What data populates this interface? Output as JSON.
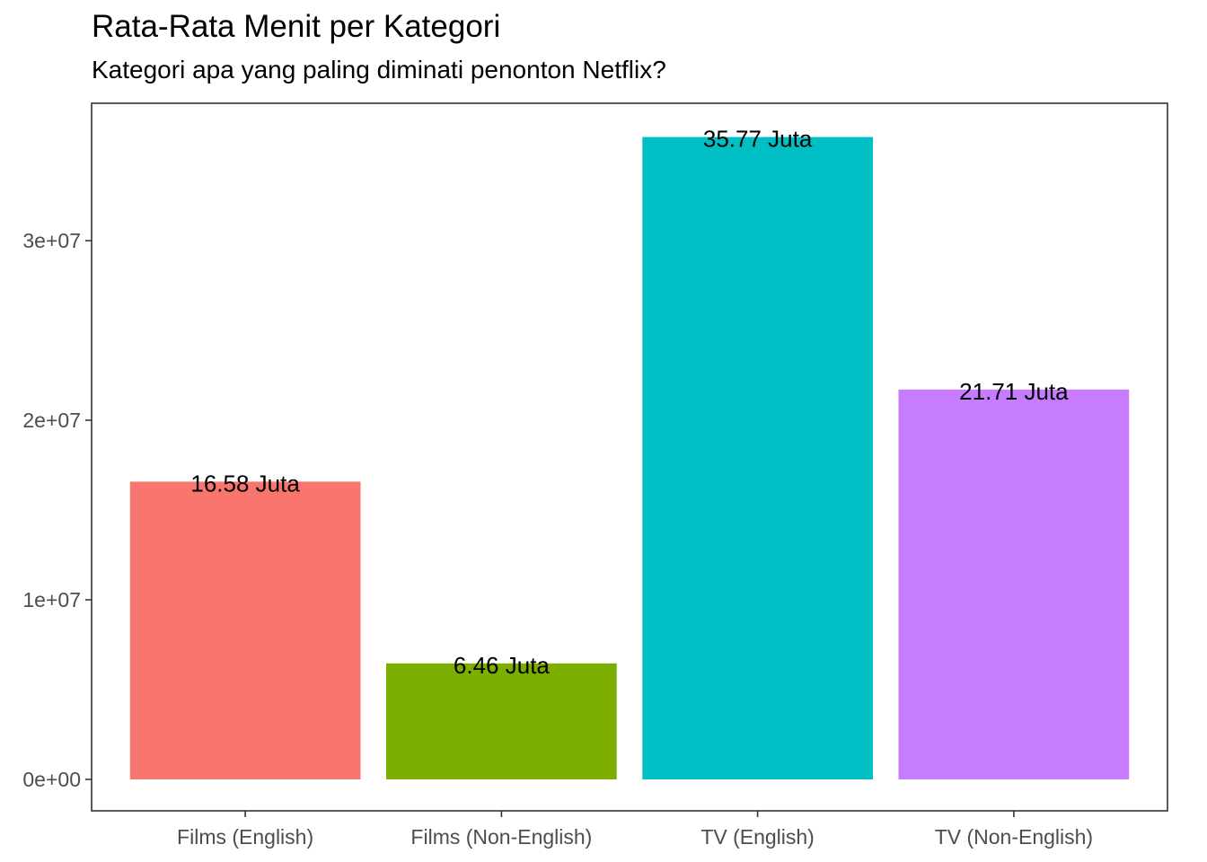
{
  "chart_data": {
    "type": "bar",
    "title": "Rata-Rata Menit per Kategori",
    "subtitle": "Kategori apa yang paling diminati penonton Netflix?",
    "xlabel": "",
    "ylabel": "",
    "categories": [
      "Films (English)",
      "Films (Non-English)",
      "TV (English)",
      "TV (Non-English)"
    ],
    "values": [
      16580000,
      6460000,
      35770000,
      21710000
    ],
    "data_labels": [
      "16.58 Juta",
      "6.46 Juta",
      "35.77 Juta",
      "21.71 Juta"
    ],
    "colors": [
      "#F8766D",
      "#7CAE00",
      "#00BFC4",
      "#C77CFF"
    ],
    "ylim": [
      0,
      38500000
    ],
    "yticks": [
      0,
      10000000,
      20000000,
      30000000
    ],
    "ytick_labels": [
      "0e+00",
      "1e+07",
      "2e+07",
      "3e+07"
    ],
    "grid": false,
    "legend": "none"
  }
}
